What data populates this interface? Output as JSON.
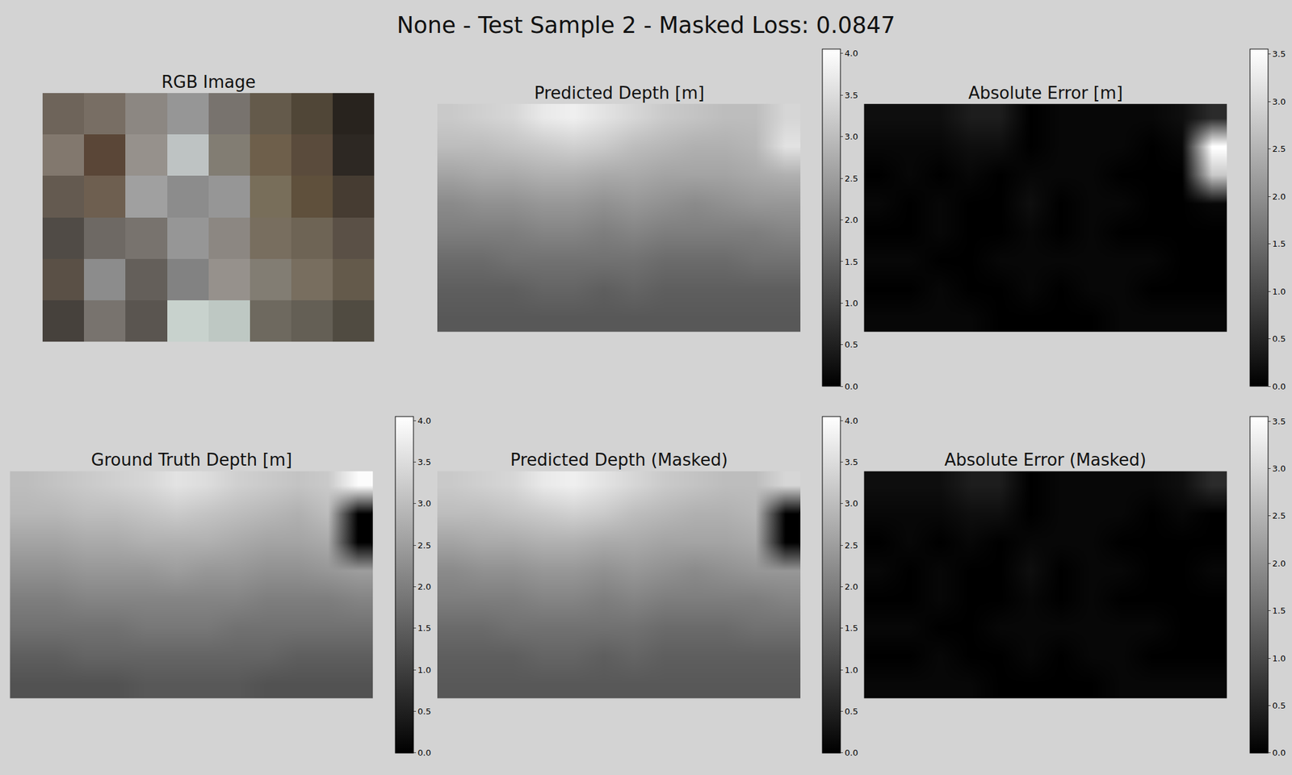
{
  "title": "None - Test Sample 2 - Masked Loss: 0.0847",
  "chart_data": [
    {
      "type": "image",
      "title": "RGB Image",
      "pixels": [
        [
          [
            110,
            100,
            90
          ],
          [
            120,
            110,
            100
          ],
          [
            140,
            135,
            130
          ],
          [
            150,
            150,
            150
          ],
          [
            120,
            115,
            110
          ],
          [
            100,
            90,
            75
          ],
          [
            80,
            70,
            55
          ],
          [
            40,
            35,
            30
          ]
        ],
        [
          [
            130,
            120,
            110
          ],
          [
            90,
            70,
            55
          ],
          [
            150,
            145,
            140
          ],
          [
            190,
            195,
            195
          ],
          [
            130,
            125,
            115
          ],
          [
            110,
            95,
            75
          ],
          [
            90,
            75,
            60
          ],
          [
            45,
            40,
            35
          ]
        ],
        [
          [
            100,
            90,
            80
          ],
          [
            110,
            95,
            80
          ],
          [
            160,
            160,
            160
          ],
          [
            140,
            140,
            140
          ],
          [
            150,
            150,
            150
          ],
          [
            120,
            110,
            90
          ],
          [
            95,
            80,
            60
          ],
          [
            70,
            60,
            50
          ]
        ],
        [
          [
            80,
            75,
            70
          ],
          [
            110,
            105,
            100
          ],
          [
            120,
            115,
            110
          ],
          [
            150,
            150,
            150
          ],
          [
            140,
            135,
            130
          ],
          [
            120,
            110,
            95
          ],
          [
            110,
            100,
            85
          ],
          [
            90,
            80,
            70
          ]
        ],
        [
          [
            90,
            80,
            70
          ],
          [
            140,
            140,
            140
          ],
          [
            100,
            95,
            90
          ],
          [
            130,
            130,
            130
          ],
          [
            150,
            145,
            140
          ],
          [
            130,
            125,
            115
          ],
          [
            120,
            110,
            95
          ],
          [
            100,
            90,
            75
          ]
        ],
        [
          [
            70,
            65,
            60
          ],
          [
            120,
            115,
            110
          ],
          [
            90,
            85,
            80
          ],
          [
            200,
            210,
            205
          ],
          [
            190,
            200,
            195
          ],
          [
            110,
            105,
            95
          ],
          [
            100,
            95,
            85
          ],
          [
            80,
            75,
            65
          ]
        ]
      ]
    },
    {
      "type": "heatmap",
      "title": "Predicted Depth [m]",
      "z": [
        [
          3.2,
          3.3,
          3.4,
          3.7,
          3.8,
          3.6,
          3.4,
          3.2,
          3.1,
          3.0,
          3.0,
          3.4
        ],
        [
          3.0,
          3.0,
          3.1,
          3.2,
          3.3,
          3.2,
          3.0,
          2.9,
          2.8,
          2.8,
          2.9,
          3.6
        ],
        [
          2.6,
          2.7,
          2.7,
          2.8,
          2.8,
          2.7,
          2.7,
          2.6,
          2.6,
          2.6,
          2.7,
          2.8
        ],
        [
          2.2,
          2.3,
          2.3,
          2.4,
          2.4,
          2.3,
          2.4,
          2.3,
          2.2,
          2.3,
          2.4,
          2.4
        ],
        [
          2.0,
          2.0,
          2.0,
          2.1,
          2.1,
          2.0,
          2.1,
          2.0,
          2.0,
          2.0,
          2.0,
          2.1
        ],
        [
          1.7,
          1.7,
          1.8,
          1.8,
          1.8,
          1.8,
          1.8,
          1.7,
          1.7,
          1.7,
          1.8,
          1.8
        ],
        [
          1.5,
          1.5,
          1.5,
          1.6,
          1.6,
          1.5,
          1.6,
          1.5,
          1.5,
          1.5,
          1.5,
          1.5
        ],
        [
          1.4,
          1.4,
          1.4,
          1.4,
          1.4,
          1.4,
          1.4,
          1.4,
          1.4,
          1.4,
          1.4,
          1.4
        ]
      ],
      "colorbar": {
        "range": [
          0,
          4.05
        ],
        "ticks": [
          {
            "value": 0,
            "label": "0.0"
          },
          0.5,
          {
            "value": 1,
            "label": "1.0"
          },
          1.5,
          {
            "value": 2,
            "label": "2.0"
          },
          2.5,
          {
            "value": 3,
            "label": "3.0"
          },
          3.5,
          {
            "value": 4,
            "label": "4.0"
          }
        ]
      }
    },
    {
      "type": "heatmap",
      "title": "Absolute Error [m]",
      "z": [
        [
          0.2,
          0.2,
          0.2,
          0.4,
          0.4,
          0.0,
          0.1,
          0.1,
          0.1,
          0.1,
          0.2,
          0.6
        ],
        [
          0.1,
          0.1,
          0.1,
          0.2,
          0.2,
          0.0,
          0.1,
          0.1,
          0.1,
          0.0,
          0.1,
          3.6
        ],
        [
          0.0,
          0.1,
          0.0,
          0.1,
          0.0,
          0.1,
          0.1,
          0.1,
          0.0,
          0.0,
          0.0,
          2.8
        ],
        [
          0.1,
          0.0,
          0.1,
          0.0,
          0.0,
          0.2,
          0.0,
          0.1,
          0.1,
          0.0,
          0.0,
          0.1
        ],
        [
          0.0,
          0.0,
          0.1,
          0.0,
          0.0,
          0.1,
          0.0,
          0.1,
          0.0,
          0.0,
          0.0,
          0.0
        ],
        [
          0.1,
          0.1,
          0.0,
          0.0,
          0.1,
          0.1,
          0.1,
          0.1,
          0.1,
          0.1,
          0.0,
          0.0
        ],
        [
          0.0,
          0.0,
          0.1,
          0.0,
          0.0,
          0.1,
          0.0,
          0.1,
          0.1,
          0.0,
          0.0,
          0.0
        ],
        [
          0.1,
          0.1,
          0.1,
          0.1,
          0.0,
          0.0,
          0.0,
          0.0,
          0.1,
          0.1,
          0.1,
          0.1
        ]
      ],
      "colorbar": {
        "range": [
          0,
          3.55
        ],
        "ticks": [
          {
            "value": 0,
            "label": "0.0"
          },
          0.5,
          {
            "value": 1,
            "label": "1.0"
          },
          1.5,
          {
            "value": 2,
            "label": "2.0"
          },
          2.5,
          {
            "value": 3,
            "label": "3.0"
          },
          3.5
        ]
      }
    },
    {
      "type": "heatmap",
      "title": "Ground Truth Depth [m]",
      "z": [
        [
          3.0,
          3.1,
          3.2,
          3.3,
          3.4,
          3.6,
          3.5,
          3.3,
          3.2,
          3.1,
          3.2,
          4.0
        ],
        [
          2.9,
          2.9,
          3.0,
          3.0,
          3.1,
          3.2,
          3.1,
          3.0,
          2.9,
          2.8,
          3.0,
          0.0
        ],
        [
          2.6,
          2.6,
          2.7,
          2.7,
          2.8,
          2.8,
          2.8,
          2.7,
          2.6,
          2.6,
          2.7,
          0.0
        ],
        [
          2.3,
          2.3,
          2.4,
          2.4,
          2.4,
          2.5,
          2.4,
          2.4,
          2.3,
          2.3,
          2.4,
          2.5
        ],
        [
          2.0,
          2.0,
          2.1,
          2.1,
          2.1,
          2.1,
          2.1,
          2.1,
          2.0,
          2.0,
          2.0,
          2.1
        ],
        [
          1.8,
          1.8,
          1.8,
          1.8,
          1.9,
          1.9,
          1.9,
          1.8,
          1.8,
          1.8,
          1.8,
          1.8
        ],
        [
          1.5,
          1.5,
          1.6,
          1.6,
          1.6,
          1.6,
          1.6,
          1.6,
          1.6,
          1.5,
          1.5,
          1.5
        ],
        [
          1.3,
          1.3,
          1.3,
          1.3,
          1.4,
          1.4,
          1.4,
          1.4,
          1.3,
          1.3,
          1.3,
          1.3
        ]
      ],
      "colorbar": {
        "range": [
          0,
          4.05
        ],
        "ticks": [
          {
            "value": 0,
            "label": "0.0"
          },
          0.5,
          {
            "value": 1,
            "label": "1.0"
          },
          1.5,
          {
            "value": 2,
            "label": "2.0"
          },
          2.5,
          {
            "value": 3,
            "label": "3.0"
          },
          3.5,
          {
            "value": 4,
            "label": "4.0"
          }
        ]
      }
    },
    {
      "type": "heatmap",
      "title": "Predicted Depth (Masked)",
      "z": [
        [
          3.2,
          3.3,
          3.4,
          3.7,
          3.8,
          3.6,
          3.4,
          3.2,
          3.1,
          3.0,
          3.0,
          3.4
        ],
        [
          3.0,
          3.0,
          3.1,
          3.2,
          3.3,
          3.2,
          3.0,
          2.9,
          2.8,
          2.8,
          2.9,
          0.0
        ],
        [
          2.6,
          2.7,
          2.7,
          2.8,
          2.8,
          2.7,
          2.7,
          2.6,
          2.6,
          2.6,
          2.7,
          0.0
        ],
        [
          2.2,
          2.3,
          2.3,
          2.4,
          2.4,
          2.3,
          2.4,
          2.3,
          2.2,
          2.3,
          2.4,
          2.4
        ],
        [
          2.0,
          2.0,
          2.0,
          2.1,
          2.1,
          2.0,
          2.1,
          2.0,
          2.0,
          2.0,
          2.0,
          2.1
        ],
        [
          1.7,
          1.7,
          1.8,
          1.8,
          1.8,
          1.8,
          1.8,
          1.7,
          1.7,
          1.7,
          1.8,
          1.8
        ],
        [
          1.5,
          1.5,
          1.5,
          1.6,
          1.6,
          1.5,
          1.6,
          1.5,
          1.5,
          1.5,
          1.5,
          1.5
        ],
        [
          1.4,
          1.4,
          1.4,
          1.4,
          1.4,
          1.4,
          1.4,
          1.4,
          1.4,
          1.4,
          1.4,
          1.4
        ]
      ],
      "colorbar": {
        "range": [
          0,
          4.05
        ],
        "ticks": [
          {
            "value": 0,
            "label": "0.0"
          },
          0.5,
          {
            "value": 1,
            "label": "1.0"
          },
          1.5,
          {
            "value": 2,
            "label": "2.0"
          },
          2.5,
          {
            "value": 3,
            "label": "3.0"
          },
          3.5,
          {
            "value": 4,
            "label": "4.0"
          }
        ]
      }
    },
    {
      "type": "heatmap",
      "title": "Absolute Error (Masked)",
      "z": [
        [
          0.2,
          0.2,
          0.2,
          0.4,
          0.4,
          0.0,
          0.1,
          0.1,
          0.1,
          0.1,
          0.2,
          0.6
        ],
        [
          0.1,
          0.1,
          0.1,
          0.2,
          0.2,
          0.0,
          0.1,
          0.1,
          0.1,
          0.0,
          0.1,
          0.0
        ],
        [
          0.0,
          0.1,
          0.0,
          0.1,
          0.0,
          0.1,
          0.1,
          0.1,
          0.0,
          0.0,
          0.0,
          0.0
        ],
        [
          0.1,
          0.0,
          0.1,
          0.0,
          0.0,
          0.2,
          0.0,
          0.1,
          0.1,
          0.0,
          0.0,
          0.1
        ],
        [
          0.0,
          0.0,
          0.1,
          0.0,
          0.0,
          0.1,
          0.0,
          0.1,
          0.0,
          0.0,
          0.0,
          0.0
        ],
        [
          0.1,
          0.1,
          0.0,
          0.0,
          0.1,
          0.1,
          0.1,
          0.1,
          0.1,
          0.1,
          0.0,
          0.0
        ],
        [
          0.0,
          0.0,
          0.1,
          0.0,
          0.0,
          0.1,
          0.0,
          0.1,
          0.1,
          0.0,
          0.0,
          0.0
        ],
        [
          0.1,
          0.1,
          0.1,
          0.1,
          0.0,
          0.0,
          0.0,
          0.0,
          0.1,
          0.1,
          0.1,
          0.1
        ]
      ],
      "colorbar": {
        "range": [
          0,
          3.55
        ],
        "ticks": [
          {
            "value": 0,
            "label": "0.0"
          },
          0.5,
          {
            "value": 1,
            "label": "1.0"
          },
          1.5,
          {
            "value": 2,
            "label": "2.0"
          },
          2.5,
          {
            "value": 3,
            "label": "3.0"
          },
          3.5
        ]
      }
    }
  ]
}
